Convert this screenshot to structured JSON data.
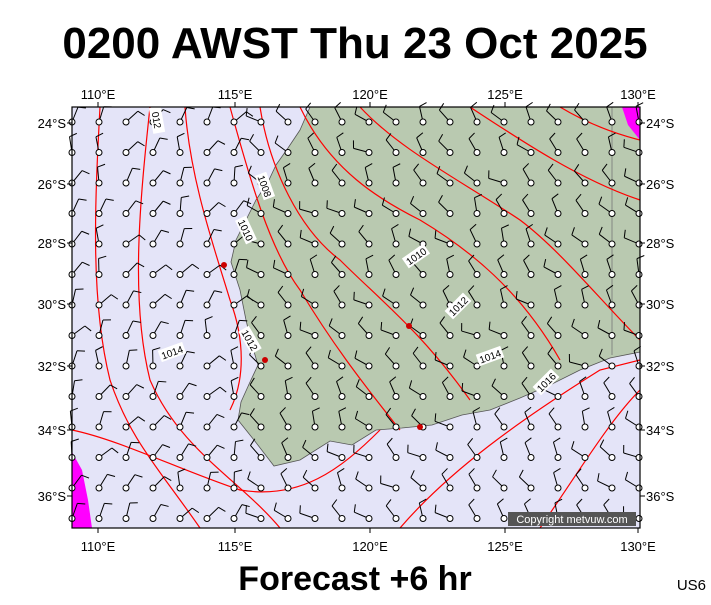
{
  "header": {
    "title": "0200 AWST Thu 23 Oct 2025"
  },
  "lon_labels": [
    "110°E",
    "115°E",
    "120°E",
    "125°E",
    "130°E"
  ],
  "lat_labels": [
    "24°S",
    "26°S",
    "28°S",
    "30°S",
    "32°S",
    "34°S",
    "36°S"
  ],
  "isobar_labels": [
    "012",
    "1008",
    "1010",
    "1010",
    "1012",
    "1012",
    "1014",
    "1014",
    "1016"
  ],
  "copyright": "Copyright metvuw.com",
  "footer": {
    "forecast": "Forecast +6 hr",
    "code": "US6"
  }
}
